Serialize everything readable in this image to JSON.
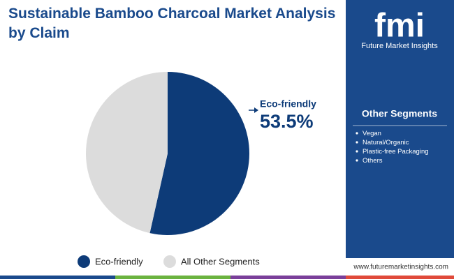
{
  "chart_data": {
    "type": "pie",
    "title": "Sustainable Bamboo Charcoal Market Analysis by Claim",
    "categories": [
      "Eco-friendly",
      "All Other Segments"
    ],
    "values": [
      53.5,
      46.5
    ],
    "value_labels": [
      "53.5%",
      null
    ],
    "colors": [
      "#0d3b78",
      "#dcdcdc"
    ]
  },
  "brand": {
    "logo": "fmi",
    "name": "Future Market Insights",
    "url": "www.futuremarketinsights.com"
  },
  "other_segments": {
    "title": "Other Segments",
    "items": [
      "Vegan",
      "Natural/Organic",
      "Plastic-free Packaging",
      "Others"
    ]
  }
}
